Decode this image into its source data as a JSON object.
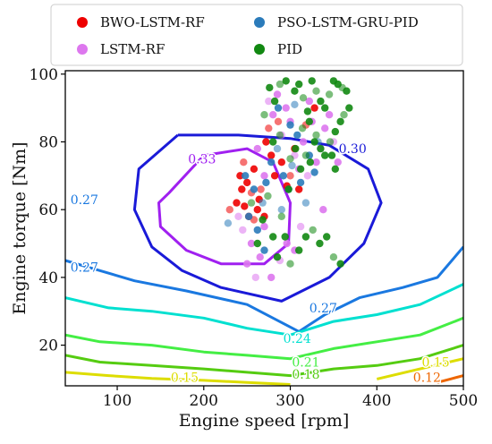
{
  "chart_data": {
    "type": "scatter",
    "title": "",
    "xlabel": "Engine speed [rpm]",
    "ylabel": "Engine torque [Nm]",
    "xlim": [
      40,
      500
    ],
    "ylim": [
      8,
      101
    ],
    "xticks": [
      100,
      200,
      300,
      400,
      500
    ],
    "yticks": [
      20,
      40,
      60,
      80,
      100
    ],
    "grid": false,
    "legend": {
      "placement": "top",
      "columns": 2
    },
    "series": [
      {
        "name": "BWO-LSTM-RF",
        "color": "#ee0000",
        "points": [
          [
            230,
            60
          ],
          [
            238,
            62
          ],
          [
            242,
            70
          ],
          [
            246,
            74
          ],
          [
            250,
            68
          ],
          [
            252,
            58
          ],
          [
            255,
            65
          ],
          [
            258,
            72
          ],
          [
            262,
            60
          ],
          [
            266,
            66
          ],
          [
            270,
            58
          ],
          [
            272,
            80
          ],
          [
            275,
            84
          ],
          [
            278,
            76
          ],
          [
            282,
            70
          ],
          [
            286,
            86
          ],
          [
            290,
            74
          ],
          [
            296,
            67
          ],
          [
            300,
            70
          ],
          [
            305,
            78
          ],
          [
            310,
            66
          ],
          [
            318,
            85
          ],
          [
            328,
            90
          ],
          [
            247,
            61
          ],
          [
            258,
            57
          ],
          [
            264,
            63
          ],
          [
            244,
            66
          ]
        ]
      },
      {
        "name": "LSTM-RF",
        "color": "#dd77ee",
        "points": [
          [
            245,
            54
          ],
          [
            250,
            44
          ],
          [
            255,
            50
          ],
          [
            260,
            40
          ],
          [
            265,
            46
          ],
          [
            270,
            55
          ],
          [
            275,
            92
          ],
          [
            280,
            88
          ],
          [
            285,
            94
          ],
          [
            290,
            82
          ],
          [
            295,
            90
          ],
          [
            300,
            86
          ],
          [
            305,
            76
          ],
          [
            310,
            72
          ],
          [
            315,
            80
          ],
          [
            320,
            70
          ],
          [
            325,
            86
          ],
          [
            330,
            74
          ],
          [
            335,
            78
          ],
          [
            340,
            84
          ],
          [
            345,
            88
          ],
          [
            350,
            80
          ],
          [
            322,
            92
          ],
          [
            296,
            50
          ],
          [
            288,
            45
          ],
          [
            278,
            40
          ],
          [
            305,
            48
          ],
          [
            312,
            55
          ],
          [
            270,
            70
          ],
          [
            262,
            78
          ],
          [
            240,
            58
          ],
          [
            338,
            60
          ],
          [
            355,
            74
          ]
        ]
      },
      {
        "name": "PSO-LSTM-GRU-PID",
        "color": "#2b7bba",
        "points": [
          [
            228,
            56
          ],
          [
            252,
            58
          ],
          [
            262,
            54
          ],
          [
            268,
            62
          ],
          [
            272,
            68
          ],
          [
            278,
            74
          ],
          [
            285,
            78
          ],
          [
            292,
            70
          ],
          [
            298,
            66
          ],
          [
            302,
            73
          ],
          [
            308,
            82
          ],
          [
            312,
            68
          ],
          [
            318,
            62
          ],
          [
            322,
            76
          ],
          [
            328,
            71
          ],
          [
            332,
            80
          ],
          [
            258,
            66
          ],
          [
            248,
            70
          ],
          [
            290,
            60
          ],
          [
            286,
            90
          ],
          [
            300,
            85
          ],
          [
            305,
            91
          ],
          [
            270,
            48
          ]
        ]
      },
      {
        "name": "PID",
        "color": "#118811",
        "points": [
          [
            255,
            62
          ],
          [
            262,
            50
          ],
          [
            268,
            57
          ],
          [
            274,
            64
          ],
          [
            280,
            52
          ],
          [
            285,
            46
          ],
          [
            290,
            58
          ],
          [
            294,
            52
          ],
          [
            298,
            66
          ],
          [
            300,
            75
          ],
          [
            305,
            95
          ],
          [
            310,
            97
          ],
          [
            315,
            93
          ],
          [
            320,
            89
          ],
          [
            325,
            98
          ],
          [
            330,
            95
          ],
          [
            335,
            92
          ],
          [
            340,
            90
          ],
          [
            345,
            94
          ],
          [
            350,
            98
          ],
          [
            355,
            97
          ],
          [
            360,
            96
          ],
          [
            365,
            95
          ],
          [
            368,
            90
          ],
          [
            362,
            88
          ],
          [
            358,
            86
          ],
          [
            352,
            83
          ],
          [
            346,
            80
          ],
          [
            340,
            76
          ],
          [
            335,
            78
          ],
          [
            330,
            82
          ],
          [
            328,
            80
          ],
          [
            323,
            74
          ],
          [
            318,
            76
          ],
          [
            312,
            72
          ],
          [
            295,
            98
          ],
          [
            288,
            97
          ],
          [
            282,
            92
          ],
          [
            276,
            96
          ],
          [
            300,
            44
          ],
          [
            310,
            48
          ],
          [
            318,
            52
          ],
          [
            326,
            54
          ],
          [
            334,
            50
          ],
          [
            342,
            52
          ],
          [
            350,
            46
          ],
          [
            358,
            44
          ],
          [
            306,
            78
          ],
          [
            314,
            84
          ],
          [
            322,
            86
          ],
          [
            280,
            80
          ],
          [
            288,
            82
          ],
          [
            352,
            72
          ],
          [
            348,
            76
          ],
          [
            270,
            88
          ]
        ]
      }
    ],
    "contours": [
      {
        "level": "0.33",
        "color": "#a020f0",
        "points": [
          [
            160,
            65
          ],
          [
            200,
            76
          ],
          [
            250,
            78
          ],
          [
            280,
            74
          ],
          [
            300,
            62
          ],
          [
            298,
            50
          ],
          [
            270,
            44
          ],
          [
            220,
            44
          ],
          [
            180,
            48
          ],
          [
            150,
            55
          ],
          [
            148,
            62
          ],
          [
            160,
            65
          ]
        ],
        "labels": [
          {
            "text": "0.33",
            "x": 198,
            "y": 75
          }
        ]
      },
      {
        "level": "0.30",
        "color": "#1a1ad8",
        "points": [
          [
            170,
            82
          ],
          [
            240,
            82
          ],
          [
            300,
            81
          ],
          [
            345,
            79
          ],
          [
            390,
            72
          ],
          [
            405,
            62
          ],
          [
            385,
            50
          ],
          [
            345,
            40
          ],
          [
            290,
            33
          ],
          [
            220,
            37
          ],
          [
            175,
            42
          ],
          [
            140,
            49
          ],
          [
            120,
            60
          ],
          [
            125,
            72
          ],
          [
            170,
            82
          ]
        ],
        "labels": [
          {
            "text": "0.30",
            "x": 372,
            "y": 78
          }
        ]
      },
      {
        "level": "0.27",
        "color": "#1a78e0",
        "points": [
          [
            40,
            45
          ],
          [
            80,
            42
          ],
          [
            120,
            39
          ],
          [
            180,
            36
          ],
          [
            250,
            32
          ],
          [
            310,
            24
          ],
          [
            340,
            29
          ],
          [
            380,
            34
          ],
          [
            430,
            37
          ],
          [
            470,
            40
          ],
          [
            500,
            49
          ]
        ],
        "labels": [
          {
            "text": "0.27",
            "x": 62,
            "y": 63
          },
          {
            "text": "0.27",
            "x": 62,
            "y": 43
          },
          {
            "text": "0.27",
            "x": 338,
            "y": 31
          }
        ]
      },
      {
        "level": "0.24",
        "color": "#00e0d0",
        "points": [
          [
            40,
            34
          ],
          [
            90,
            31
          ],
          [
            140,
            30
          ],
          [
            200,
            28
          ],
          [
            250,
            25
          ],
          [
            300,
            23
          ],
          [
            350,
            27
          ],
          [
            400,
            29
          ],
          [
            450,
            32
          ],
          [
            500,
            38
          ]
        ],
        "labels": [
          {
            "text": "0.24",
            "x": 308,
            "y": 22
          }
        ]
      },
      {
        "level": "0.21",
        "color": "#44ee44",
        "points": [
          [
            40,
            23
          ],
          [
            80,
            21
          ],
          [
            140,
            20
          ],
          [
            200,
            18
          ],
          [
            250,
            17
          ],
          [
            300,
            16
          ],
          [
            350,
            19
          ],
          [
            400,
            21
          ],
          [
            450,
            23
          ],
          [
            500,
            28
          ]
        ],
        "labels": [
          {
            "text": "0.21",
            "x": 318,
            "y": 15
          }
        ]
      },
      {
        "level": "0.18",
        "color": "#55cc11",
        "points": [
          [
            40,
            17
          ],
          [
            80,
            15
          ],
          [
            140,
            14
          ],
          [
            200,
            13
          ],
          [
            250,
            12
          ],
          [
            300,
            11
          ],
          [
            350,
            13
          ],
          [
            400,
            14
          ],
          [
            450,
            16
          ],
          [
            500,
            20
          ]
        ],
        "labels": [
          {
            "text": "0.18",
            "x": 318,
            "y": 11.5
          }
        ]
      },
      {
        "level": "0.15",
        "color": "#dddd00",
        "points": [
          [
            40,
            12
          ],
          [
            90,
            11
          ],
          [
            140,
            10.2
          ],
          [
            200,
            9.6
          ],
          [
            250,
            9
          ],
          [
            300,
            8.4
          ]
        ],
        "labels": [
          {
            "text": "0.15",
            "x": 178,
            "y": 10.5
          }
        ]
      },
      {
        "level": "0.15",
        "color": "#dddd00",
        "points": [
          [
            400,
            10
          ],
          [
            450,
            13
          ],
          [
            500,
            16
          ]
        ],
        "labels": [
          {
            "text": "0.15",
            "x": 468,
            "y": 15
          }
        ]
      },
      {
        "level": "0.12",
        "color": "#ee6600",
        "points": [
          [
            470,
            9
          ],
          [
            485,
            10
          ],
          [
            500,
            11
          ]
        ],
        "labels": [
          {
            "text": "0.12",
            "x": 458,
            "y": 10.5
          }
        ]
      }
    ]
  }
}
